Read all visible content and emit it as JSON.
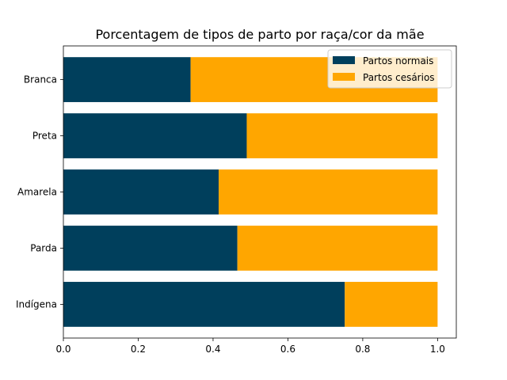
{
  "chart_data": {
    "type": "bar",
    "orientation": "horizontal",
    "stacked": true,
    "title": "Porcentagem de tipos de parto por raça/cor da mãe",
    "xlabel": "",
    "ylabel": "",
    "categories": [
      "Indígena",
      "Parda",
      "Amarela",
      "Preta",
      "Branca"
    ],
    "series": [
      {
        "name": "Partos normais",
        "values": [
          0.752,
          0.465,
          0.415,
          0.49,
          0.34
        ],
        "color": "#003f5c"
      },
      {
        "name": "Partos cesários",
        "values": [
          0.248,
          0.535,
          0.585,
          0.51,
          0.66
        ],
        "color": "#ffa600"
      }
    ],
    "xlim": [
      0.0,
      1.05
    ],
    "xticks": [
      "0.0",
      "0.2",
      "0.4",
      "0.6",
      "0.8",
      "1.0"
    ],
    "grid": false,
    "legend_position": "top-right"
  }
}
